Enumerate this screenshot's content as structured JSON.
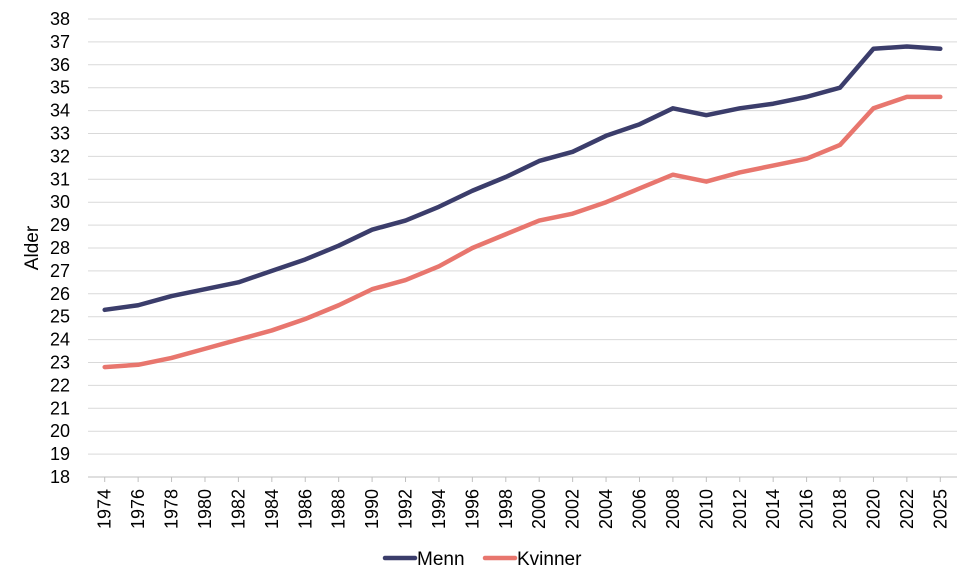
{
  "chart_data": {
    "type": "line",
    "title": "",
    "xlabel": "",
    "ylabel": "Alder",
    "ylim": [
      18,
      38
    ],
    "y_ticks": [
      "18",
      "19",
      "20",
      "21",
      "22",
      "23",
      "24",
      "25",
      "26",
      "27",
      "28",
      "29",
      "30",
      "31",
      "32",
      "33",
      "34",
      "35",
      "36",
      "37",
      "38"
    ],
    "grid": true,
    "legend_position": "bottom",
    "categories": [
      "1974",
      "1976",
      "1978",
      "1980",
      "1982",
      "1984",
      "1986",
      "1988",
      "1990",
      "1992",
      "1994",
      "1996",
      "1998",
      "2000",
      "2002",
      "2004",
      "2006",
      "2008",
      "2010",
      "2012",
      "2014",
      "2016",
      "2018",
      "2020",
      "2022",
      "2025"
    ],
    "series": [
      {
        "name": "Menn",
        "color": "#3b3d6b",
        "values": [
          25.3,
          25.5,
          25.9,
          26.2,
          26.5,
          27.0,
          27.5,
          28.1,
          28.8,
          29.2,
          29.8,
          30.5,
          31.1,
          31.8,
          32.2,
          32.9,
          33.4,
          34.1,
          33.8,
          34.1,
          34.3,
          34.6,
          35.0,
          36.7,
          36.8,
          36.7
        ]
      },
      {
        "name": "Kvinner",
        "color": "#e8766e",
        "values": [
          22.8,
          22.9,
          23.2,
          23.6,
          24.0,
          24.4,
          24.9,
          25.5,
          26.2,
          26.6,
          27.2,
          28.0,
          28.6,
          29.2,
          29.5,
          30.0,
          30.6,
          31.2,
          30.9,
          31.3,
          31.6,
          31.9,
          32.5,
          34.1,
          34.6,
          34.6
        ]
      }
    ]
  }
}
